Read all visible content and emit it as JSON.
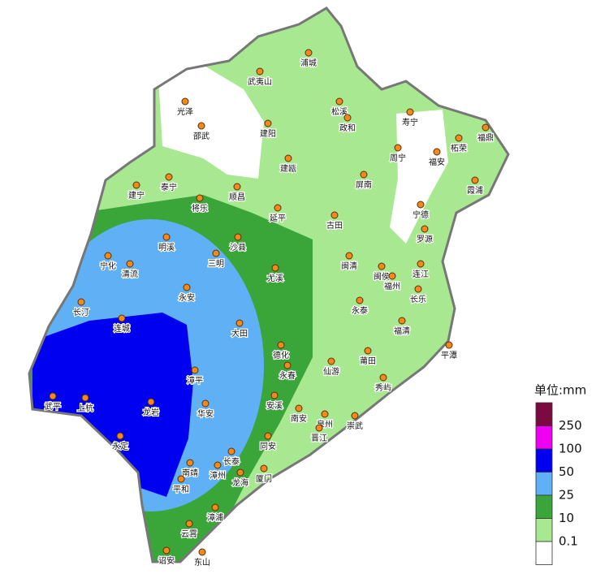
{
  "map": {
    "cities": [
      {
        "name": "浦城"
      },
      {
        "name": "武夷山"
      },
      {
        "name": "光泽"
      },
      {
        "name": "松溪"
      },
      {
        "name": "政和"
      },
      {
        "name": "寿宁"
      },
      {
        "name": "福鼎"
      },
      {
        "name": "柘荣"
      },
      {
        "name": "邵武"
      },
      {
        "name": "建阳"
      },
      {
        "name": "周宁"
      },
      {
        "name": "福安"
      },
      {
        "name": "建瓯"
      },
      {
        "name": "泰宁"
      },
      {
        "name": "建宁"
      },
      {
        "name": "霞浦"
      },
      {
        "name": "屏南"
      },
      {
        "name": "顺昌"
      },
      {
        "name": "将乐"
      },
      {
        "name": "宁德"
      },
      {
        "name": "延平"
      },
      {
        "name": "古田"
      },
      {
        "name": "罗源"
      },
      {
        "name": "明溪"
      },
      {
        "name": "沙县"
      },
      {
        "name": "宁化"
      },
      {
        "name": "清流"
      },
      {
        "name": "三明"
      },
      {
        "name": "闽清"
      },
      {
        "name": "闽侯"
      },
      {
        "name": "连江"
      },
      {
        "name": "尤溪"
      },
      {
        "name": "福州"
      },
      {
        "name": "长乐"
      },
      {
        "name": "永安"
      },
      {
        "name": "长汀"
      },
      {
        "name": "永泰"
      },
      {
        "name": "连城"
      },
      {
        "name": "大田"
      },
      {
        "name": "福清"
      },
      {
        "name": "平潭"
      },
      {
        "name": "德化"
      },
      {
        "name": "永春"
      },
      {
        "name": "仙游"
      },
      {
        "name": "莆田"
      },
      {
        "name": "漳平"
      },
      {
        "name": "秀屿"
      },
      {
        "name": "武平"
      },
      {
        "name": "上杭"
      },
      {
        "name": "龙岩"
      },
      {
        "name": "华安"
      },
      {
        "name": "安溪"
      },
      {
        "name": "南安"
      },
      {
        "name": "泉州"
      },
      {
        "name": "崇武"
      },
      {
        "name": "晋江"
      },
      {
        "name": "永定"
      },
      {
        "name": "同安"
      },
      {
        "name": "长泰"
      },
      {
        "name": "南靖"
      },
      {
        "name": "漳州"
      },
      {
        "name": "厦门"
      },
      {
        "name": "龙海"
      },
      {
        "name": "平和"
      },
      {
        "name": "漳浦"
      },
      {
        "name": "云霄"
      },
      {
        "name": "诏安"
      },
      {
        "name": "东山"
      }
    ],
    "legend": {
      "title": "单位:mm",
      "labels": [
        250,
        100,
        50,
        25,
        10,
        0.1
      ],
      "colors": [
        "#7b0a40",
        "#f000f0",
        "#0000f0",
        "#5fb0f5",
        "#3aa63a",
        "#a8e890",
        "#ffffff"
      ]
    }
  }
}
